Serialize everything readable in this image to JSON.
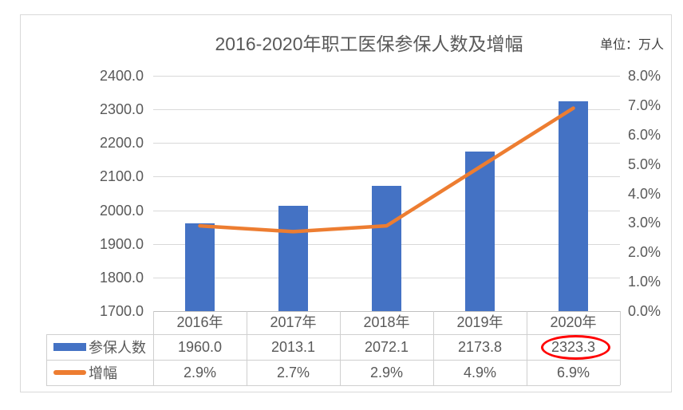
{
  "page": {
    "background": "#FFFFFF",
    "chart_border_color": "#D9D9D9"
  },
  "header": {
    "title": "2016-2020年职工医保参保人数及增幅",
    "unit_label": "单位：万人"
  },
  "chart_data": {
    "type": "combo",
    "title": "2016-2020年职工医保参保人数及增幅",
    "unit": "万人",
    "categories": [
      "2016年",
      "2017年",
      "2018年",
      "2019年",
      "2020年"
    ],
    "series": [
      {
        "name": "参保人数",
        "chart": "bar",
        "axis": "left",
        "color": "#4472C4",
        "values": [
          1960.0,
          2013.1,
          2072.1,
          2173.8,
          2323.3
        ],
        "labels": [
          "1960.0",
          "2013.1",
          "2072.1",
          "2173.8",
          "2323.3"
        ]
      },
      {
        "name": "增幅",
        "chart": "line",
        "axis": "right",
        "color": "#ED7D31",
        "values": [
          2.9,
          2.7,
          2.9,
          4.9,
          6.9
        ],
        "labels": [
          "2.9%",
          "2.7%",
          "2.9%",
          "4.9%",
          "6.9%"
        ]
      }
    ],
    "left_axis": {
      "min": 1700,
      "max": 2400,
      "step": 100,
      "ticks": [
        "2400.0",
        "2300.0",
        "2200.0",
        "2100.0",
        "2000.0",
        "1900.0",
        "1800.0",
        "1700.0"
      ]
    },
    "right_axis": {
      "min": 0,
      "max": 8,
      "step": 1,
      "ticks": [
        "8.0%",
        "7.0%",
        "6.0%",
        "5.0%",
        "4.0%",
        "3.0%",
        "2.0%",
        "1.0%",
        "0.0%"
      ]
    },
    "gridlines": true,
    "legend_position": "table-left",
    "annotation": {
      "shape": "ellipse",
      "color": "#FF0000",
      "series": "参保人数",
      "category": "2020年",
      "value_circled": "2323.3"
    }
  },
  "colors": {
    "bar": "#4472C4",
    "line": "#ED7D31",
    "grid": "#D9D9D9",
    "axis_line": "#BFBFBF",
    "axis_text": "#595959",
    "table_border": "#CFCFCF",
    "title_text": "#595959",
    "unit_text": "#404040",
    "annotation": "#FF0000"
  }
}
